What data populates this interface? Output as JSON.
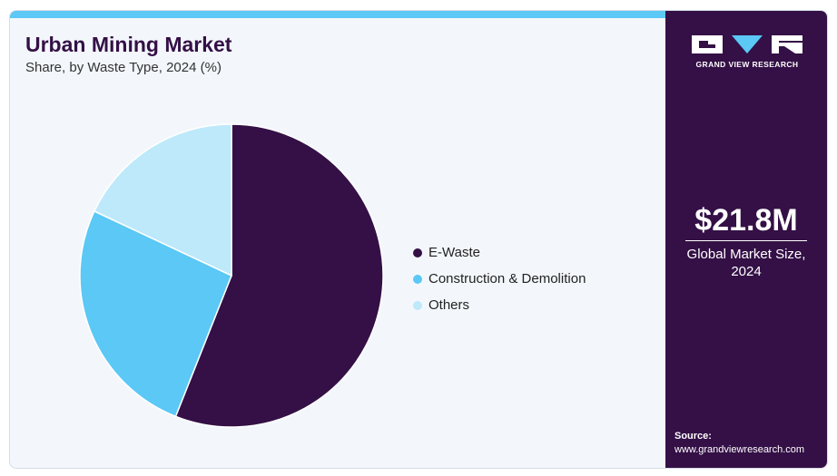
{
  "header": {
    "title": "Urban Mining Market",
    "subtitle": "Share, by Waste Type, 2024 (%)"
  },
  "chart_data": {
    "type": "pie",
    "title": "Urban Mining Market",
    "subtitle": "Share, by Waste Type, 2024 (%)",
    "categories": [
      "E-Waste",
      "Construction & Demolition",
      "Others"
    ],
    "values": [
      56,
      26,
      18
    ],
    "colors": [
      "#341046",
      "#5bc8f5",
      "#bde9fa"
    ],
    "start_angle": "12 o'clock, clockwise",
    "legend_position": "right"
  },
  "sidebar": {
    "brand": "GRAND VIEW RESEARCH",
    "market_value": "$21.8M",
    "market_label": "Global Market Size, 2024",
    "source_label": "Source:",
    "source_url": "www.grandviewresearch.com"
  },
  "colors": {
    "brand_dark": "#341046",
    "accent": "#5bc8f5",
    "panel_bg": "#f3f7fb"
  }
}
